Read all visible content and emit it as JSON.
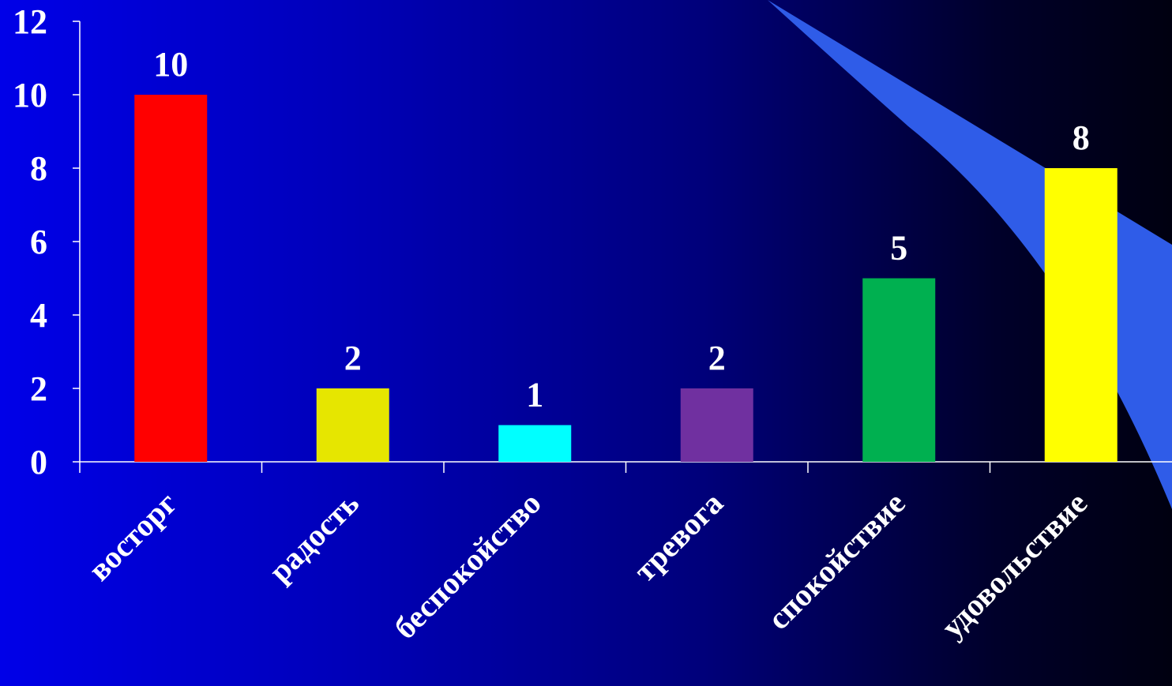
{
  "colors": {
    "ribbon": "#2f5ce8",
    "text": "#ffffff",
    "axis": "#ffffff"
  },
  "chart_data": {
    "type": "bar",
    "categories": [
      "восторг",
      "радость",
      "беспокойство",
      "тревога",
      "спокойствие",
      "удовольствие"
    ],
    "values": [
      10,
      2,
      1,
      2,
      5,
      8
    ],
    "bar_colors": [
      "#ff0000",
      "#e6e600",
      "#00ffff",
      "#7030a0",
      "#00b050",
      "#ffff00"
    ],
    "ylim": [
      0,
      12
    ],
    "yticks": [
      0,
      2,
      4,
      6,
      8,
      10,
      12
    ],
    "data_labels": true,
    "grid": false,
    "legend": "none"
  }
}
